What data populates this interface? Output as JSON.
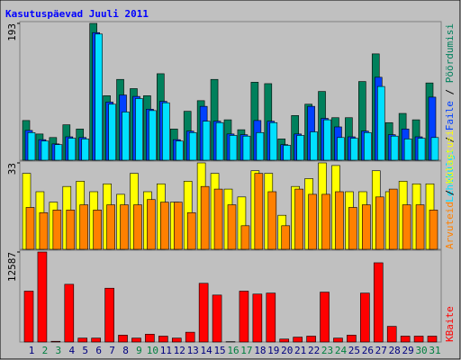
{
  "title": "Kasutuspäevad Juuli 2011",
  "legend_separator": " / ",
  "chart_data": [
    {
      "type": "bar",
      "ylim": [
        0,
        193
      ],
      "yticks": [
        193
      ],
      "series": [
        {
          "name": "Pöördumisi",
          "color": "#00805c",
          "values": [
            56,
            37,
            32,
            50,
            44,
            193,
            91,
            114,
            101,
            91,
            122,
            44,
            69,
            84,
            114,
            57,
            43,
            110,
            108,
            30,
            63,
            79,
            97,
            60,
            60,
            111,
            150,
            53,
            66,
            57,
            109
          ]
        },
        {
          "name": "Faile",
          "color": "#0040ff",
          "values": [
            42,
            29,
            23,
            33,
            32,
            180,
            82,
            92,
            90,
            72,
            83,
            29,
            41,
            76,
            55,
            37,
            36,
            56,
            55,
            22,
            37,
            76,
            59,
            47,
            33,
            41,
            117,
            36,
            44,
            33,
            89
          ]
        },
        {
          "name": "Lehekülgi",
          "color": "#00e0ff",
          "values": [
            39,
            27,
            22,
            31,
            30,
            178,
            79,
            68,
            87,
            70,
            81,
            27,
            39,
            55,
            53,
            35,
            34,
            39,
            53,
            21,
            35,
            40,
            57,
            32,
            31,
            39,
            104,
            34,
            30,
            31,
            32
          ]
        }
      ]
    },
    {
      "type": "bar",
      "ylim": [
        0,
        33
      ],
      "yticks": [
        33
      ],
      "series": [
        {
          "name": "Külastusi",
          "color": "#ffff00",
          "values": [
            29,
            22,
            18,
            24,
            26,
            22,
            25,
            21,
            29,
            22,
            25,
            18,
            26,
            33,
            29,
            23,
            20,
            30,
            29,
            13,
            24,
            27,
            33,
            32,
            22,
            22,
            30,
            22,
            26,
            25,
            25
          ]
        },
        {
          "name": "Arvuteid",
          "color": "#ff8000",
          "values": [
            16,
            14,
            15,
            15,
            17,
            15,
            17,
            17,
            17,
            19,
            18,
            18,
            14,
            24,
            23,
            17,
            9,
            29,
            22,
            9,
            23,
            21,
            21,
            22,
            16,
            17,
            20,
            23,
            17,
            17,
            15
          ]
        }
      ]
    },
    {
      "type": "bar",
      "ylim": [
        0,
        12587
      ],
      "yticks": [
        12587
      ],
      "categories": [
        "1",
        "2",
        "3",
        "4",
        "5",
        "6",
        "7",
        "8",
        "9",
        "10",
        "11",
        "12",
        "13",
        "14",
        "15",
        "16",
        "17",
        "18",
        "19",
        "20",
        "21",
        "22",
        "23",
        "24",
        "25",
        "26",
        "27",
        "28",
        "29",
        "30",
        "31"
      ],
      "category_colors": [
        "#000080",
        "#008040",
        "#008040",
        "#000080",
        "#000080",
        "#000080",
        "#000080",
        "#000080",
        "#008040",
        "#008040",
        "#000080",
        "#000080",
        "#000080",
        "#000080",
        "#000080",
        "#008040",
        "#008040",
        "#000080",
        "#000080",
        "#000080",
        "#000080",
        "#000080",
        "#008040",
        "#008040",
        "#000080",
        "#000080",
        "#000080",
        "#000080",
        "#000080",
        "#008040",
        "#008040"
      ],
      "series": [
        {
          "name": "KBaite",
          "color": "#ff0000",
          "values": [
            7114,
            12587,
            100,
            8070,
            547,
            547,
            7524,
            958,
            547,
            1094,
            821,
            547,
            1368,
            8208,
            6566,
            50,
            7114,
            6703,
            6840,
            410,
            684,
            821,
            6977,
            547,
            958,
            6840,
            11080,
            2189,
            821,
            821,
            821
          ]
        }
      ]
    }
  ]
}
